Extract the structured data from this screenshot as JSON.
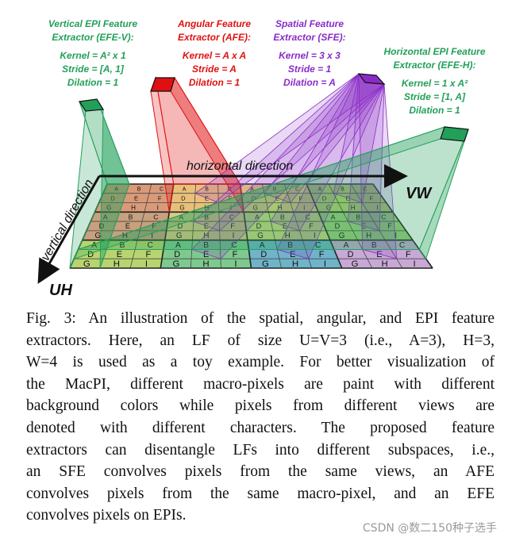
{
  "figure": {
    "efe_v": {
      "title1": "Vertical EPI Feature",
      "title2": "Extractor (EFE-V):",
      "kernel": "Kernel = A² x 1",
      "stride": "Stride = [A, 1]",
      "dilation": "Dilation = 1",
      "color": "#22a05a"
    },
    "afe": {
      "title1": "Angular Feature",
      "title2": "Extractor (AFE):",
      "kernel": "Kernel = A x A",
      "stride": "Stride = A",
      "dilation": "Dilation = 1",
      "color": "#e01010"
    },
    "sfe": {
      "title1": "Spatial Feature",
      "title2": "Extractor (SFE):",
      "kernel": "Kernel = 3 x 3",
      "stride": "Stride = 1",
      "dilation": "Dilation = A",
      "color": "#8a2bc8"
    },
    "efe_h": {
      "title1": "Horizontal EPI Feature",
      "title2": "Extractor (EFE-H):",
      "kernel": "Kernel = 1 x A²",
      "stride": "Stride = [1, A]",
      "dilation": "Dilation = 1",
      "color": "#22a05a"
    },
    "axes": {
      "horizontal": "horizontal direction",
      "vertical": "vertical direction",
      "uh": "UH",
      "vw": "VW"
    },
    "grid": {
      "rows": [
        [
          "A",
          "B",
          "C",
          "A",
          "B",
          "C",
          "A",
          "B",
          "C",
          "A",
          "B",
          "C"
        ],
        [
          "D",
          "E",
          "F",
          "D",
          "E",
          "F",
          "D",
          "E",
          "F",
          "D",
          "E",
          "F"
        ],
        [
          "G",
          "H",
          "I",
          "G",
          "H",
          "I",
          "G",
          "H",
          "I",
          "G",
          "H",
          "I"
        ],
        [
          "A",
          "B",
          "C",
          "A",
          "B",
          "C",
          "A",
          "B",
          "C",
          "A",
          "B",
          "C"
        ],
        [
          "D",
          "E",
          "F",
          "D",
          "E",
          "F",
          "D",
          "E",
          "F",
          "D",
          "E",
          "F"
        ],
        [
          "G",
          "H",
          "I",
          "G",
          "H",
          "I",
          "G",
          "H",
          "I",
          "G",
          "H",
          "I"
        ],
        [
          "A",
          "B",
          "C",
          "A",
          "B",
          "C",
          "A",
          "B",
          "C",
          "A",
          "B",
          "C"
        ],
        [
          "D",
          "E",
          "F",
          "D",
          "E",
          "F",
          "D",
          "E",
          "F",
          "D",
          "E",
          "F"
        ],
        [
          "G",
          "H",
          "I",
          "G",
          "H",
          "I",
          "G",
          "H",
          "I",
          "G",
          "H",
          "I"
        ]
      ],
      "macro_colors": [
        [
          "#d99a7a",
          "#e8c07a",
          "#e7d977",
          "#b9d36f"
        ],
        [
          "#c7a07e",
          "#dcc784",
          "#cdd880",
          "#9fcf7e"
        ],
        [
          "#b8d470",
          "#7ec98e",
          "#6fb4c9",
          "#c8a9d6"
        ]
      ]
    }
  },
  "caption": {
    "lines": [
      "Fig. 3: An illustration of the spatial, angular, and EPI feature",
      "extractors. Here, an LF of size U=V=3 (i.e., A=3), H=3,",
      "W=4 is used as a toy example. For better visualization of",
      "the MacPI, different macro-pixels are paint with different",
      "background colors while pixels from different views are",
      "denoted with different characters. The proposed feature",
      "extractors can disentangle LFs into different subspaces, i.e.,",
      "an SFE convolves pixels from the same views, an AFE",
      "convolves pixels from the same macro-pixel, and an EFE",
      "convolves pixels on EPIs."
    ]
  },
  "watermark": "CSDN @数二150种子选手"
}
